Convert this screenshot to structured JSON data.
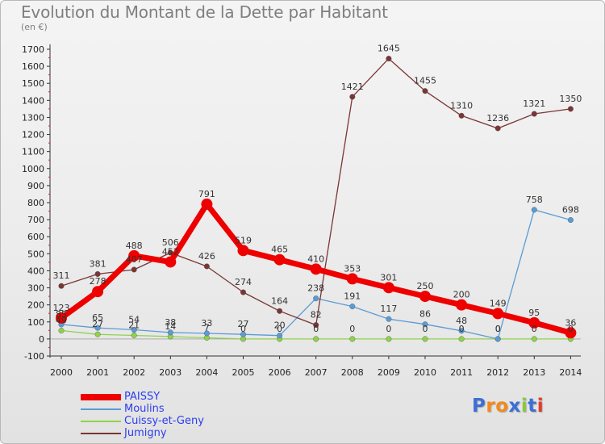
{
  "header": {
    "title": "Evolution du Montant de la Dette par Habitant",
    "subtitle": "(en €)"
  },
  "logo": {
    "text": "Proxiti"
  },
  "chart_data": {
    "type": "line",
    "title": "Evolution du Montant de la Dette par Habitant",
    "subtitle": "(en €)",
    "xlabel": "",
    "ylabel": "",
    "categories": [
      "2000",
      "2001",
      "2002",
      "2003",
      "2004",
      "2005",
      "2006",
      "2007",
      "2008",
      "2009",
      "2010",
      "2011",
      "2012",
      "2013",
      "2014"
    ],
    "ylim": [
      -100,
      1700
    ],
    "yticks": [
      -100,
      0,
      100,
      200,
      300,
      400,
      500,
      600,
      700,
      800,
      900,
      1000,
      1100,
      1200,
      1300,
      1400,
      1500,
      1600,
      1700
    ],
    "grid": false,
    "legend_position": "bottom-left",
    "series": [
      {
        "name": "PAISSY",
        "color": "#ee0000",
        "values": [
          123,
          278,
          488,
          452,
          791,
          519,
          465,
          410,
          353,
          301,
          250,
          200,
          149,
          95,
          36
        ],
        "labels": [
          "123",
          "278",
          "488",
          "452",
          "791",
          "519",
          "465",
          "410",
          "353",
          "301",
          "250",
          "200",
          "149",
          "95",
          "36"
        ]
      },
      {
        "name": "Moulins",
        "color": "#5b9bd5",
        "values": [
          85,
          65,
          54,
          38,
          33,
          27,
          20,
          238,
          191,
          117,
          86,
          48,
          0,
          758,
          698
        ],
        "labels": [
          "85",
          "65",
          "54",
          "38",
          "33",
          "27",
          "20",
          "238",
          "191",
          "117",
          "86",
          "48",
          "0",
          "758",
          "698"
        ]
      },
      {
        "name": "Cuissy-et-Geny",
        "color": "#8ed34a",
        "values": [
          49,
          27,
          21,
          14,
          7,
          0,
          0,
          0,
          0,
          0,
          0,
          0,
          0,
          0,
          0
        ],
        "labels": [
          "49",
          "27",
          "21",
          "14",
          "7",
          "0",
          "0",
          "0",
          "0",
          "0",
          "0",
          "0",
          "0",
          "0",
          "0"
        ]
      },
      {
        "name": "Jumigny",
        "color": "#7a3535",
        "values": [
          311,
          381,
          407,
          506,
          426,
          274,
          164,
          82,
          1421,
          1645,
          1455,
          1310,
          1236,
          1321,
          1350
        ],
        "labels": [
          "311",
          "381",
          "407",
          "506",
          "426",
          "274",
          "164",
          "82",
          "1421",
          "1645",
          "1455",
          "1310",
          "1236",
          "1321",
          "1350"
        ]
      }
    ]
  }
}
